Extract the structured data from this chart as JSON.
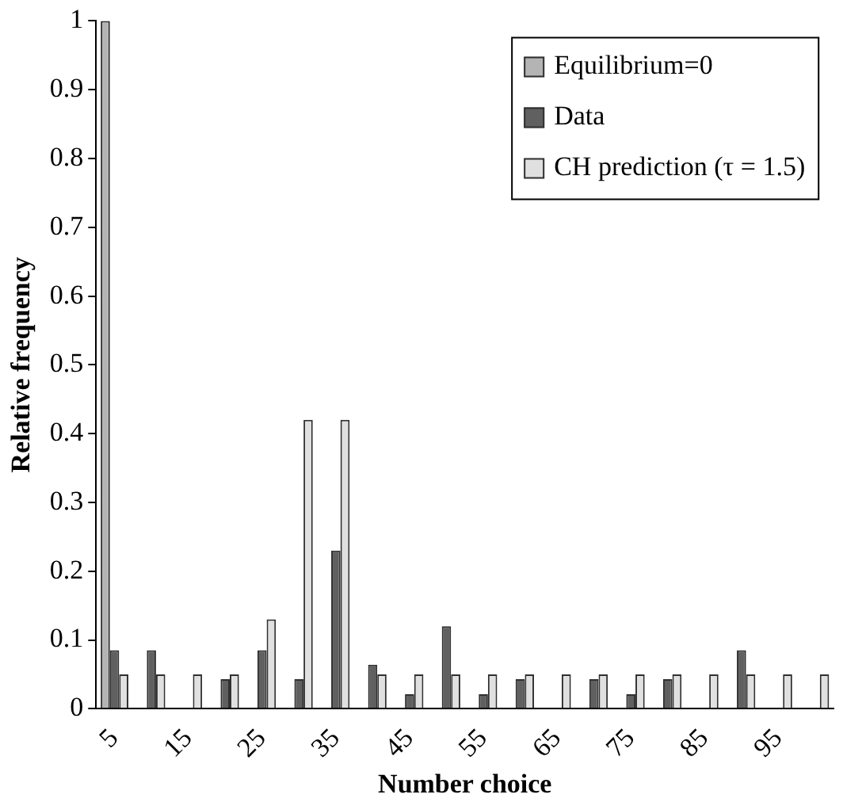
{
  "chart_data": {
    "type": "bar",
    "xlabel": "Number choice",
    "ylabel": "Relative frequency",
    "categories": [
      "5",
      null,
      "15",
      null,
      "25",
      null,
      "35",
      null,
      "45",
      null,
      "55",
      null,
      "65",
      null,
      "75",
      null,
      "85",
      null,
      "95",
      null
    ],
    "series": [
      {
        "name": "Equilibrium=0",
        "color": "#b4b4b4",
        "values": [
          1,
          0,
          0,
          0,
          0,
          0,
          0,
          0,
          0,
          0,
          0,
          0,
          0,
          0,
          0,
          0,
          0,
          0,
          0,
          0
        ]
      },
      {
        "name": "Data",
        "color": "#606060",
        "values": [
          0.085,
          0.085,
          0,
          0.043,
          0.085,
          0.043,
          0.23,
          0.064,
          0.021,
          0.12,
          0.021,
          0.043,
          0,
          0.043,
          0.021,
          0.043,
          0,
          0.085,
          0,
          0
        ]
      },
      {
        "name": "CH prediction (τ = 1.5)",
        "color": "#e0e0e0",
        "values": [
          0.05,
          0.05,
          0.05,
          0.05,
          0.13,
          0.42,
          0.42,
          0.05,
          0.05,
          0.05,
          0.05,
          0.05,
          0.05,
          0.05,
          0.05,
          0.05,
          0.05,
          0.05,
          0.05,
          0.05
        ]
      }
    ],
    "ylim": [
      0,
      1
    ],
    "yticks": [
      0,
      0.1,
      0.2,
      0.3,
      0.4,
      0.5,
      0.6,
      0.7,
      0.8,
      0.9,
      1
    ],
    "grid": false,
    "legend": "top right"
  }
}
